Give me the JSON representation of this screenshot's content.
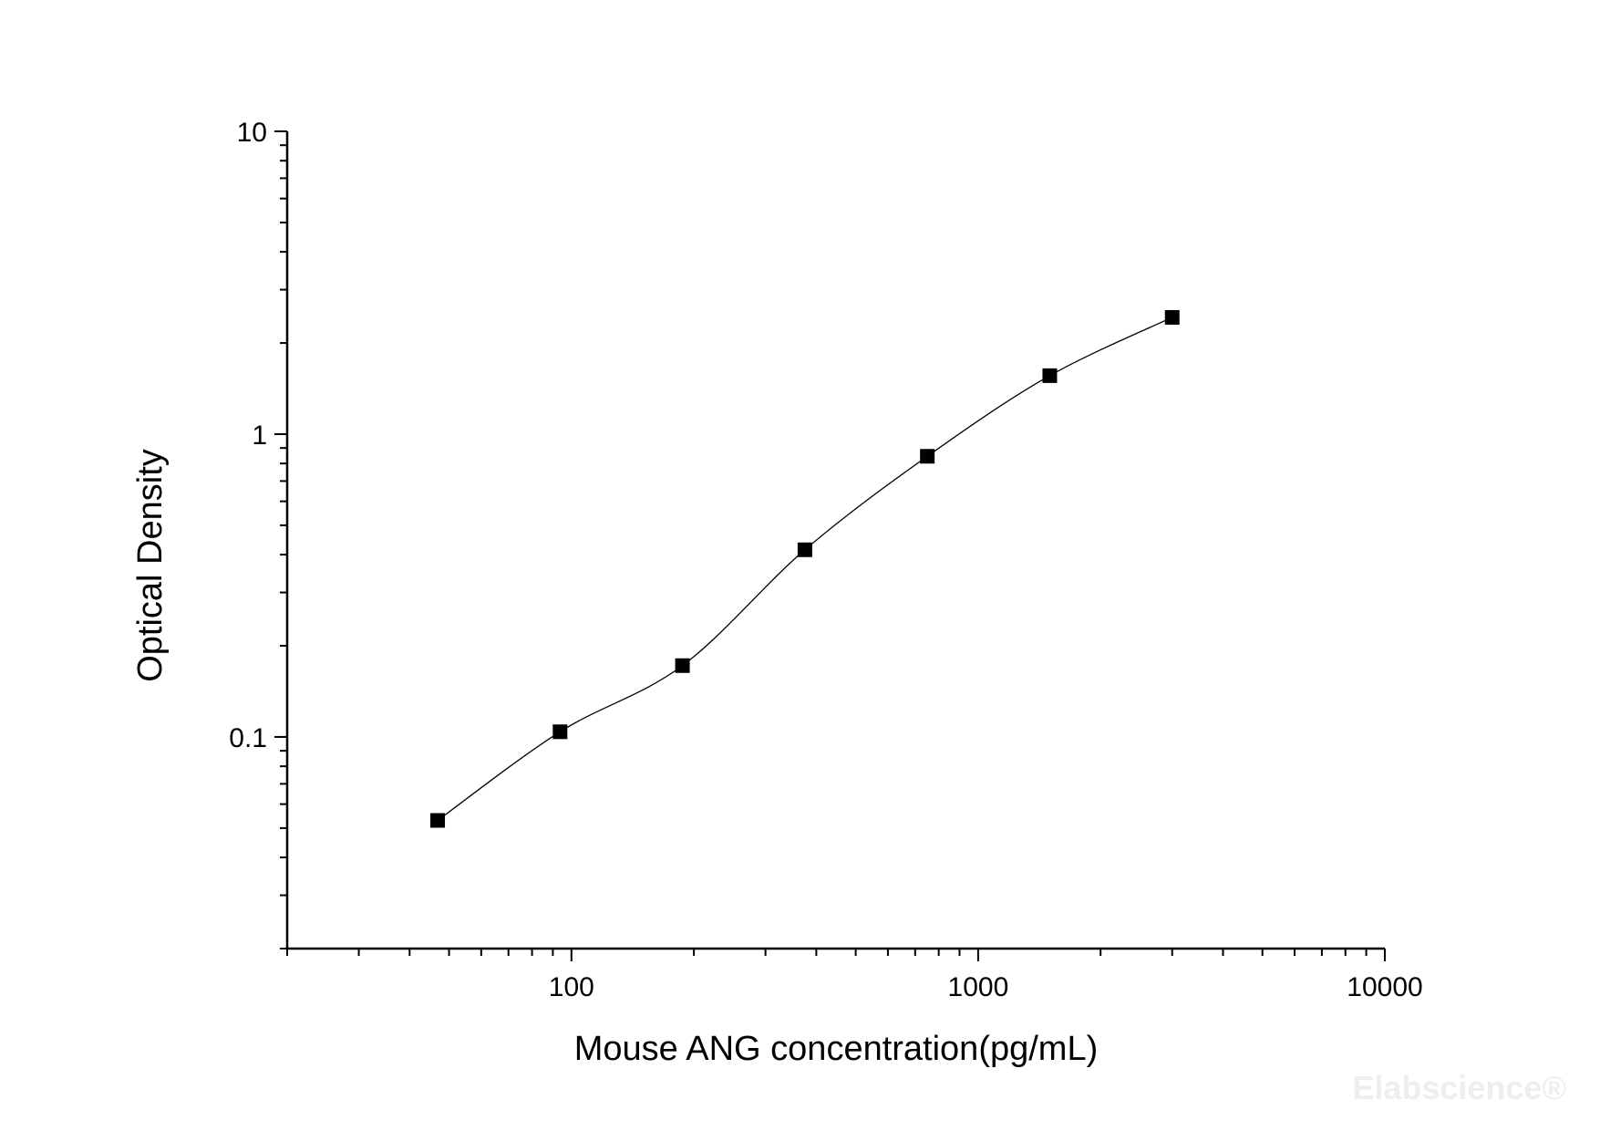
{
  "chart_data": {
    "type": "scatter",
    "title": "",
    "xlabel": "Mouse ANG concentration(pg/mL)",
    "ylabel": "Optical Density",
    "xscale": "log",
    "yscale": "log",
    "xlim": [
      20,
      10000
    ],
    "ylim": [
      0.02,
      10
    ],
    "x_ticks": [
      "100",
      "1000",
      "10000"
    ],
    "y_ticks": [
      "0.1",
      "1",
      "10"
    ],
    "grid": false,
    "series": [
      {
        "marker": "square",
        "fit_curve": true,
        "color": "#000000",
        "x": [
          46.88,
          93.75,
          187.5,
          375,
          750,
          1500,
          3000
        ],
        "y": [
          0.053,
          0.104,
          0.172,
          0.415,
          0.845,
          1.56,
          2.43
        ]
      }
    ],
    "watermark": "Elabscience®"
  }
}
